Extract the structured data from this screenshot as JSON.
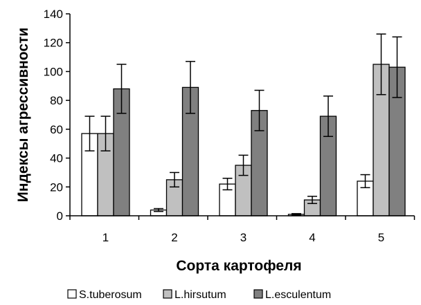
{
  "chart_data": {
    "type": "bar",
    "xlabel": "Сорта картофеля",
    "ylabel": "Индексы агрессивности",
    "categories": [
      "1",
      "2",
      "3",
      "4",
      "5"
    ],
    "ylim": [
      0,
      140
    ],
    "yticks": [
      0,
      20,
      40,
      60,
      80,
      100,
      120,
      140
    ],
    "grid": false,
    "legend_position": "bottom",
    "series": [
      {
        "name": "S.tuberosum",
        "color": "#ffffff",
        "values": [
          57,
          4,
          22,
          1,
          24
        ],
        "errors": [
          12,
          1,
          4,
          0.5,
          4.5
        ]
      },
      {
        "name": "L.hirsutum",
        "color": "#c0c0c0",
        "values": [
          57,
          25,
          35,
          11,
          105
        ],
        "errors": [
          12,
          5,
          7,
          2.5,
          21
        ]
      },
      {
        "name": "L.esculentum",
        "color": "#808080",
        "values": [
          88,
          89,
          73,
          69,
          103
        ],
        "errors": [
          17,
          18,
          14,
          14,
          21
        ]
      }
    ]
  }
}
